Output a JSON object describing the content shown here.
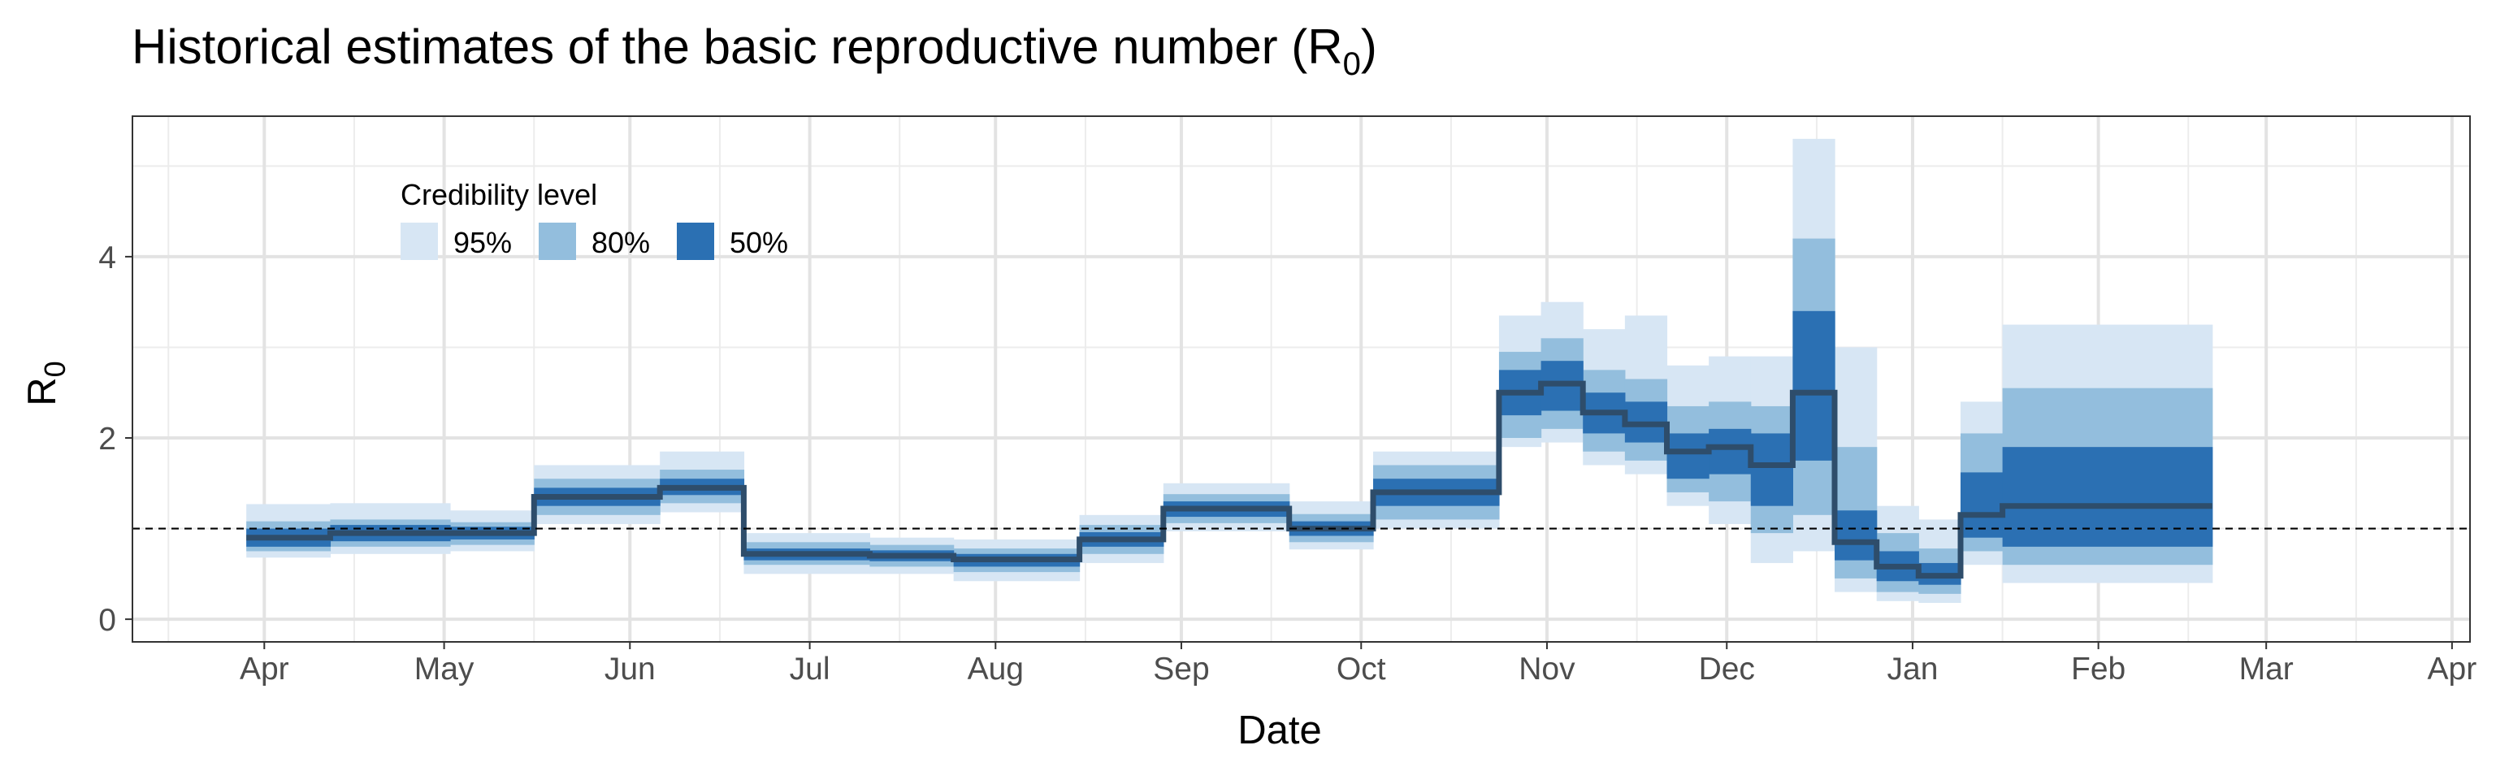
{
  "chart_data": {
    "type": "area",
    "title": "Historical estimates of the basic reproductive number (R",
    "title_sub": "0",
    "title_end": ")",
    "xlabel": "Date",
    "ylabel": "R",
    "ylabel_sub": "0",
    "ylim": [
      -0.25,
      5.55
    ],
    "y_ticks": [
      0,
      2,
      4
    ],
    "y_minor_ticks": [
      1,
      3,
      5
    ],
    "x_ticks": [
      {
        "date": "2020-04-01",
        "label": "Apr"
      },
      {
        "date": "2020-05-01",
        "label": "May"
      },
      {
        "date": "2020-06-01",
        "label": "Jun"
      },
      {
        "date": "2020-07-01",
        "label": "Jul"
      },
      {
        "date": "2020-08-01",
        "label": "Aug"
      },
      {
        "date": "2020-09-01",
        "label": "Sep"
      },
      {
        "date": "2020-10-01",
        "label": "Oct"
      },
      {
        "date": "2020-11-01",
        "label": "Nov"
      },
      {
        "date": "2020-12-01",
        "label": "Dec"
      },
      {
        "date": "2021-01-01",
        "label": "Jan"
      },
      {
        "date": "2021-02-01",
        "label": "Feb"
      },
      {
        "date": "2021-03-01",
        "label": "Mar"
      },
      {
        "date": "2021-04-01",
        "label": "Apr"
      }
    ],
    "x_minor_ticks": [
      "2020-03-16",
      "2020-04-16",
      "2020-05-16",
      "2020-06-16",
      "2020-07-16",
      "2020-08-16",
      "2020-09-16",
      "2020-10-16",
      "2020-11-16",
      "2020-12-16",
      "2021-01-16",
      "2021-02-16",
      "2021-03-16"
    ],
    "xlim": [
      "2020-03-10",
      "2021-04-04"
    ],
    "reference_line": 1,
    "grid": true,
    "legend": {
      "title": "Credibility level",
      "placement": "top-left",
      "items": [
        {
          "label": "95%",
          "color": "#d7e6f4"
        },
        {
          "label": "80%",
          "color": "#93bedd"
        },
        {
          "label": "50%",
          "color": "#2b70b3"
        }
      ]
    },
    "colors": {
      "median": "#2e4d6b",
      "ci95": "#d7e6f4",
      "ci80": "#93bedd",
      "ci50": "#2b70b3"
    },
    "segments": [
      {
        "start": "2020-03-29",
        "end": "2020-04-12",
        "median": 0.9,
        "ci50": [
          0.8,
          1.0
        ],
        "ci80": [
          0.75,
          1.08
        ],
        "ci95": [
          0.68,
          1.27
        ]
      },
      {
        "start": "2020-04-12",
        "end": "2020-05-02",
        "median": 0.95,
        "ci50": [
          0.86,
          1.04
        ],
        "ci80": [
          0.8,
          1.1
        ],
        "ci95": [
          0.72,
          1.28
        ]
      },
      {
        "start": "2020-05-02",
        "end": "2020-05-16",
        "median": 0.95,
        "ci50": [
          0.88,
          1.02
        ],
        "ci80": [
          0.82,
          1.07
        ],
        "ci95": [
          0.75,
          1.2
        ]
      },
      {
        "start": "2020-05-16",
        "end": "2020-06-06",
        "median": 1.35,
        "ci50": [
          1.25,
          1.45
        ],
        "ci80": [
          1.15,
          1.55
        ],
        "ci95": [
          1.05,
          1.7
        ]
      },
      {
        "start": "2020-06-06",
        "end": "2020-06-20",
        "median": 1.45,
        "ci50": [
          1.37,
          1.55
        ],
        "ci80": [
          1.28,
          1.65
        ],
        "ci95": [
          1.18,
          1.85
        ]
      },
      {
        "start": "2020-06-20",
        "end": "2020-07-11",
        "median": 0.72,
        "ci50": [
          0.65,
          0.78
        ],
        "ci80": [
          0.6,
          0.85
        ],
        "ci95": [
          0.5,
          0.95
        ]
      },
      {
        "start": "2020-07-11",
        "end": "2020-07-25",
        "median": 0.7,
        "ci50": [
          0.64,
          0.76
        ],
        "ci80": [
          0.58,
          0.82
        ],
        "ci95": [
          0.5,
          0.9
        ]
      },
      {
        "start": "2020-07-25",
        "end": "2020-08-15",
        "median": 0.66,
        "ci50": [
          0.58,
          0.72
        ],
        "ci80": [
          0.52,
          0.78
        ],
        "ci95": [
          0.42,
          0.88
        ]
      },
      {
        "start": "2020-08-15",
        "end": "2020-08-29",
        "median": 0.88,
        "ci50": [
          0.8,
          0.96
        ],
        "ci80": [
          0.72,
          1.04
        ],
        "ci95": [
          0.62,
          1.15
        ]
      },
      {
        "start": "2020-08-29",
        "end": "2020-09-19",
        "median": 1.22,
        "ci50": [
          1.13,
          1.3
        ],
        "ci80": [
          1.06,
          1.38
        ],
        "ci95": [
          0.97,
          1.5
        ]
      },
      {
        "start": "2020-09-19",
        "end": "2020-10-03",
        "median": 1.0,
        "ci50": [
          0.92,
          1.08
        ],
        "ci80": [
          0.85,
          1.16
        ],
        "ci95": [
          0.77,
          1.3
        ]
      },
      {
        "start": "2020-10-03",
        "end": "2020-10-24",
        "median": 1.4,
        "ci50": [
          1.25,
          1.55
        ],
        "ci80": [
          1.1,
          1.7
        ],
        "ci95": [
          1.0,
          1.85
        ]
      },
      {
        "start": "2020-10-24",
        "end": "2020-10-31",
        "median": 2.5,
        "ci50": [
          2.25,
          2.75
        ],
        "ci80": [
          2.0,
          2.95
        ],
        "ci95": [
          1.9,
          3.35
        ]
      },
      {
        "start": "2020-10-31",
        "end": "2020-11-07",
        "median": 2.6,
        "ci50": [
          2.3,
          2.85
        ],
        "ci80": [
          2.1,
          3.1
        ],
        "ci95": [
          1.95,
          3.5
        ]
      },
      {
        "start": "2020-11-07",
        "end": "2020-11-14",
        "median": 2.28,
        "ci50": [
          2.05,
          2.5
        ],
        "ci80": [
          1.85,
          2.75
        ],
        "ci95": [
          1.7,
          3.2
        ]
      },
      {
        "start": "2020-11-14",
        "end": "2020-11-21",
        "median": 2.15,
        "ci50": [
          1.95,
          2.4
        ],
        "ci80": [
          1.75,
          2.65
        ],
        "ci95": [
          1.6,
          3.35
        ]
      },
      {
        "start": "2020-11-21",
        "end": "2020-11-28",
        "median": 1.85,
        "ci50": [
          1.55,
          2.05
        ],
        "ci80": [
          1.4,
          2.35
        ],
        "ci95": [
          1.25,
          2.8
        ]
      },
      {
        "start": "2020-11-28",
        "end": "2020-12-05",
        "median": 1.9,
        "ci50": [
          1.6,
          2.1
        ],
        "ci80": [
          1.3,
          2.4
        ],
        "ci95": [
          1.05,
          2.9
        ]
      },
      {
        "start": "2020-12-05",
        "end": "2020-12-12",
        "median": 1.7,
        "ci50": [
          1.25,
          2.05
        ],
        "ci80": [
          0.95,
          2.35
        ],
        "ci95": [
          0.62,
          2.9
        ]
      },
      {
        "start": "2020-12-12",
        "end": "2020-12-19",
        "median": 2.5,
        "ci50": [
          1.75,
          3.4
        ],
        "ci80": [
          1.15,
          4.2
        ],
        "ci95": [
          0.75,
          5.3
        ]
      },
      {
        "start": "2020-12-19",
        "end": "2020-12-26",
        "median": 0.85,
        "ci50": [
          0.65,
          1.2
        ],
        "ci80": [
          0.45,
          1.9
        ],
        "ci95": [
          0.3,
          3.0
        ]
      },
      {
        "start": "2020-12-26",
        "end": "2021-01-02",
        "median": 0.58,
        "ci50": [
          0.42,
          0.75
        ],
        "ci80": [
          0.3,
          0.95
        ],
        "ci95": [
          0.2,
          1.25
        ]
      },
      {
        "start": "2021-01-02",
        "end": "2021-01-09",
        "median": 0.48,
        "ci50": [
          0.38,
          0.62
        ],
        "ci80": [
          0.28,
          0.78
        ],
        "ci95": [
          0.18,
          1.1
        ]
      },
      {
        "start": "2021-01-09",
        "end": "2021-01-16",
        "median": 1.15,
        "ci50": [
          0.9,
          1.62
        ],
        "ci80": [
          0.75,
          2.05
        ],
        "ci95": [
          0.6,
          2.4
        ]
      },
      {
        "start": "2021-01-16",
        "end": "2021-02-20",
        "median": 1.25,
        "ci50": [
          0.8,
          1.9
        ],
        "ci80": [
          0.6,
          2.55
        ],
        "ci95": [
          0.4,
          3.25
        ]
      }
    ]
  }
}
